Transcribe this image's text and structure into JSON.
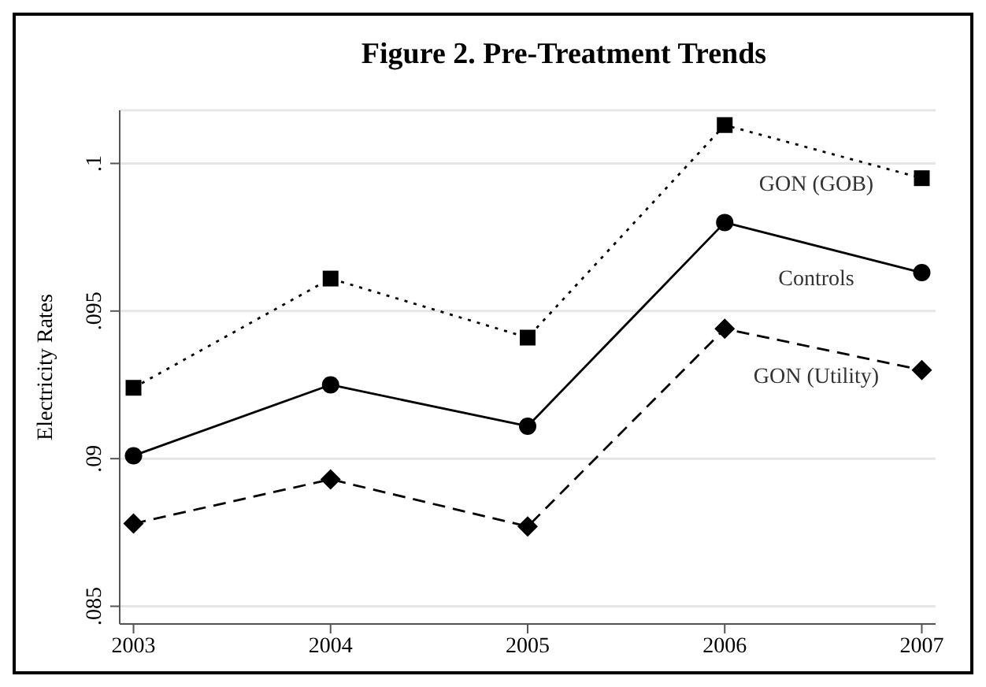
{
  "chart_data": {
    "type": "line",
    "title": "Figure 2.  Pre-Treatment Trends",
    "ylabel": "Electricity Rates",
    "x": [
      2003,
      2004,
      2005,
      2006,
      2007
    ],
    "xlim": [
      2002.93,
      2007.07
    ],
    "xticks": [
      2003,
      2004,
      2005,
      2006,
      2007
    ],
    "ylim": [
      0.0844,
      0.1018
    ],
    "yticks": [
      {
        "value": 0.085,
        "label": ".085"
      },
      {
        "value": 0.09,
        "label": ".09"
      },
      {
        "value": 0.095,
        "label": ".095"
      },
      {
        "value": 0.1,
        "label": ".1"
      }
    ],
    "grid": "y",
    "legend": false,
    "series": [
      {
        "name": "GON (GOB)",
        "color": "#000000",
        "marker": "square",
        "line_style": "dotted",
        "values": [
          0.0924,
          0.0961,
          0.0941,
          0.1013,
          0.0995
        ]
      },
      {
        "name": "Controls",
        "color": "#000000",
        "marker": "circle",
        "line_style": "solid",
        "values": [
          0.0901,
          0.0925,
          0.0911,
          0.098,
          0.0963
        ]
      },
      {
        "name": "GON (Utility)",
        "color": "#000000",
        "marker": "diamond",
        "line_style": "dashed",
        "values": [
          0.0878,
          0.0893,
          0.0877,
          0.0944,
          0.093
        ]
      }
    ]
  }
}
